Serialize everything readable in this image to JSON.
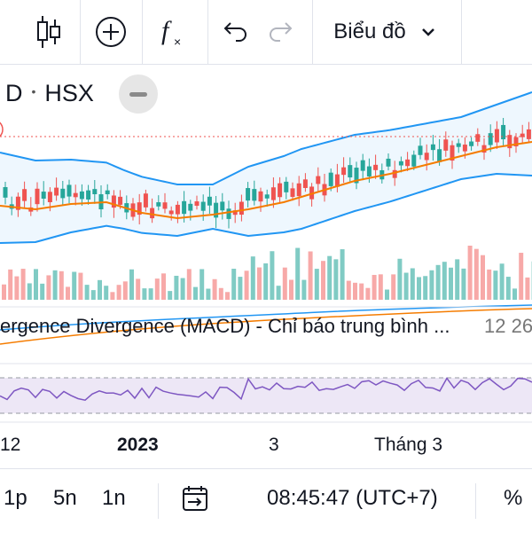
{
  "toolbar": {
    "indicator_icon": "candlestick-icon",
    "add_icon": "plus-circle-icon",
    "fx_icon": "function-icon",
    "undo_icon": "undo-icon",
    "redo_icon": "redo-icon",
    "chart_type_label": "Biểu đồ",
    "dropdown_icon": "chevron-down-icon"
  },
  "symbol": {
    "interval": "D",
    "exchange": "HSX"
  },
  "indicator": {
    "label": "ergence Divergence (MACD) - Chỉ báo trung bình ...",
    "value": "12 26"
  },
  "time_axis": {
    "labels": [
      "12",
      "2023",
      "3",
      "Tháng 3"
    ]
  },
  "bottom_bar": {
    "ranges": [
      "1p",
      "5n",
      "1n"
    ],
    "calendar_icon": "calendar-goto-icon",
    "time": "08:45:47 (UTC+7)",
    "percent_label": "%"
  },
  "colors": {
    "up": "#26a69a",
    "down": "#ef5350",
    "bollinger": "#2196f3",
    "ma": "#f57c00",
    "rsi": "#7e57c2",
    "rsi_band": "#ede7f6"
  }
}
